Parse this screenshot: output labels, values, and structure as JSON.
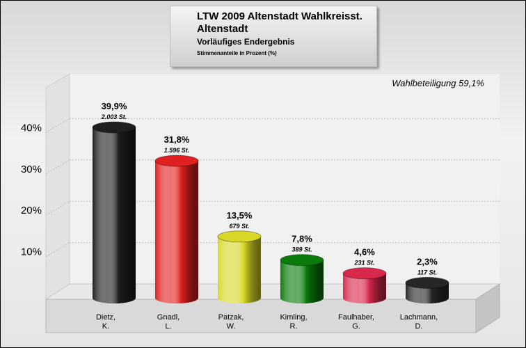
{
  "chart_data": {
    "type": "bar",
    "title": "LTW 2009 Altenstadt Wahlkreisst. Altenstadt",
    "subtitle": "Vorläufiges Endergebnis",
    "ylabel": "Stimmenanteile in Prozent (%)",
    "annotation": "Wahlbeteiligung 59,1%",
    "ylim": [
      0,
      50
    ],
    "yticks": [
      {
        "value": 10,
        "label": "10%"
      },
      {
        "value": 20,
        "label": "20%"
      },
      {
        "value": 30,
        "label": "30%"
      },
      {
        "value": 40,
        "label": "40%"
      }
    ],
    "grid": true,
    "categories": [
      {
        "line1": "Dietz,",
        "line2": "K."
      },
      {
        "line1": "Gnadl,",
        "line2": "L."
      },
      {
        "line1": "Patzak,",
        "line2": "W."
      },
      {
        "line1": "Kimling,",
        "line2": "R."
      },
      {
        "line1": "Faulhaber,",
        "line2": "G."
      },
      {
        "line1": "Lachmann,",
        "line2": "D."
      }
    ],
    "values": [
      39.9,
      31.8,
      13.5,
      7.8,
      4.6,
      2.3
    ],
    "value_labels": [
      "39,9%",
      "31,8%",
      "13,5%",
      "7,8%",
      "4,6%",
      "2,3%"
    ],
    "votes": [
      "2.003 St.",
      "1.596 St.",
      "679 St.",
      "389 St.",
      "231 St.",
      "117 St."
    ],
    "colors": [
      "#1e1e1e",
      "#e02020",
      "#d8d828",
      "#0a7a0a",
      "#d8284c",
      "#262626"
    ]
  }
}
